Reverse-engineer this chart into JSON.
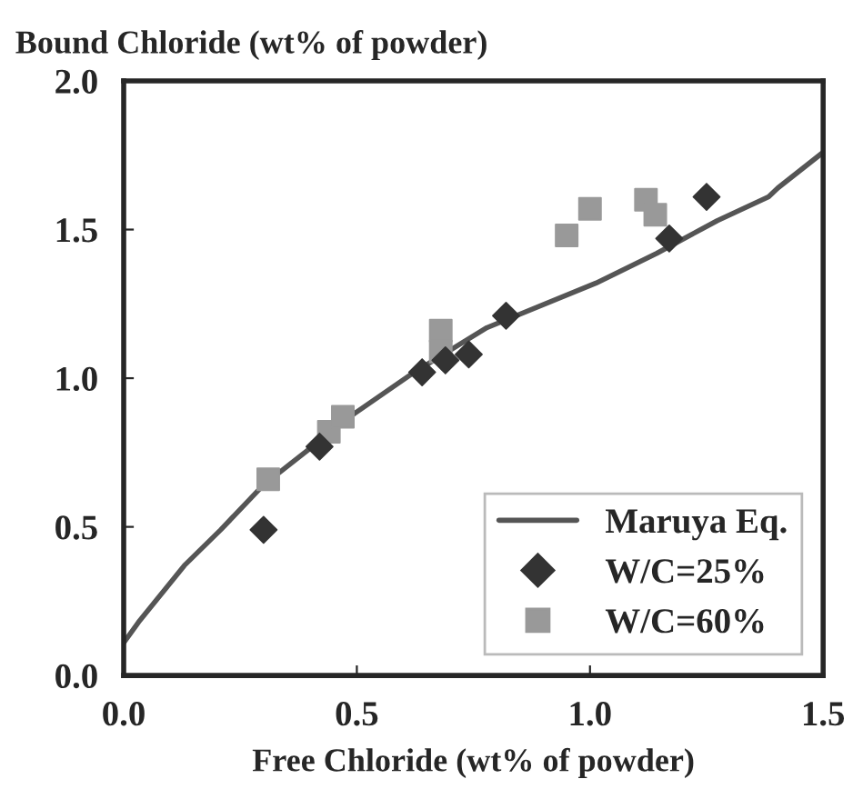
{
  "chart_data": {
    "type": "scatter",
    "ylabel": "Bound Chloride (wt% of powder)",
    "xlabel": "Free Chloride (wt% of powder)",
    "xlim": [
      0,
      1.5
    ],
    "xticks": [
      {
        "value": 0,
        "label": "0.0"
      },
      0.5,
      {
        "value": 1,
        "label": "1.0"
      },
      1.5
    ],
    "ylim": [
      0,
      2
    ],
    "yticks": [
      {
        "value": 0,
        "label": "0.0"
      },
      0.5,
      {
        "value": 1,
        "label": "1.0"
      },
      1.5,
      {
        "value": 2,
        "label": "2.0"
      }
    ],
    "grid": false,
    "legend": "bottom right",
    "series": [
      {
        "name": "Maruya Eq.",
        "type": "line",
        "color": "#555555",
        "marker": "none",
        "line_style": "solid",
        "x": [
          0,
          0.032,
          0.13,
          0.208,
          0.299,
          0.494,
          0.623,
          0.779,
          1.013,
          1.143,
          1.273,
          1.383,
          1.403,
          1.5
        ],
        "values": [
          0.11,
          0.18,
          0.37,
          0.49,
          0.64,
          0.88,
          1.02,
          1.17,
          1.32,
          1.42,
          1.53,
          1.61,
          1.64,
          1.76
        ]
      },
      {
        "name": "W/C=25%",
        "color": "#333333",
        "marker": "diamond",
        "x": [
          0.3,
          0.42,
          0.64,
          0.69,
          0.74,
          0.82,
          1.17,
          1.25
        ],
        "values": [
          0.49,
          0.77,
          1.02,
          1.06,
          1.08,
          1.21,
          1.47,
          1.61
        ]
      },
      {
        "name": "W/C=60%",
        "color": "#999999",
        "marker": "square",
        "x": [
          0.31,
          0.44,
          0.47,
          0.68,
          0.68,
          0.95,
          1.0,
          1.12,
          1.14
        ],
        "values": [
          0.66,
          0.82,
          0.87,
          1.16,
          1.09,
          1.48,
          1.57,
          1.6,
          1.55
        ]
      }
    ]
  }
}
